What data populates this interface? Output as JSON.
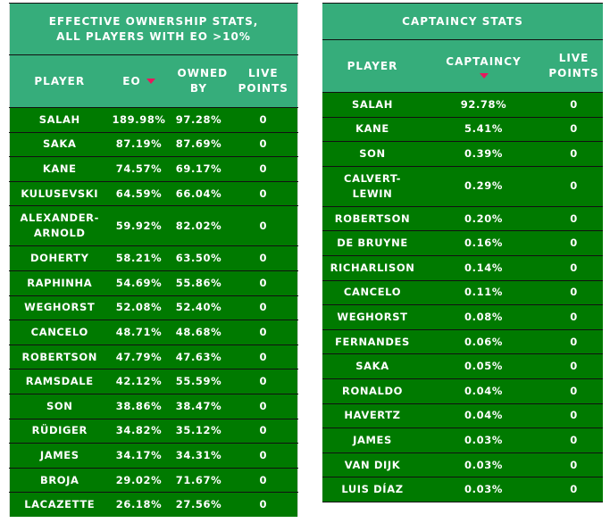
{
  "eo_table": {
    "title": "EFFECTIVE OWNERSHIP STATS, ALL PLAYERS WITH EO >10%",
    "columns": [
      "PLAYER",
      "EO",
      "OWNED BY",
      "LIVE POINTS"
    ],
    "sort_color": "#e8175d",
    "rows": [
      [
        "SALAH",
        "189.98%",
        "97.28%",
        "0"
      ],
      [
        "SAKA",
        "87.19%",
        "87.69%",
        "0"
      ],
      [
        "KANE",
        "74.57%",
        "69.17%",
        "0"
      ],
      [
        "KULUSEVSKI",
        "64.59%",
        "66.04%",
        "0"
      ],
      [
        "ALEXANDER-ARNOLD",
        "59.92%",
        "82.02%",
        "0"
      ],
      [
        "DOHERTY",
        "58.21%",
        "63.50%",
        "0"
      ],
      [
        "RAPHINHA",
        "54.69%",
        "55.86%",
        "0"
      ],
      [
        "WEGHORST",
        "52.08%",
        "52.40%",
        "0"
      ],
      [
        "CANCELO",
        "48.71%",
        "48.68%",
        "0"
      ],
      [
        "ROBERTSON",
        "47.79%",
        "47.63%",
        "0"
      ],
      [
        "RAMSDALE",
        "42.12%",
        "55.59%",
        "0"
      ],
      [
        "SON",
        "38.86%",
        "38.47%",
        "0"
      ],
      [
        "RÜDIGER",
        "34.82%",
        "35.12%",
        "0"
      ],
      [
        "JAMES",
        "34.17%",
        "34.31%",
        "0"
      ],
      [
        "BROJA",
        "29.02%",
        "71.67%",
        "0"
      ],
      [
        "LACAZETTE",
        "26.18%",
        "27.56%",
        "0"
      ]
    ]
  },
  "captaincy_table": {
    "title": "CAPTAINCY STATS",
    "columns": [
      "PLAYER",
      "CAPTAINCY",
      "LIVE POINTS"
    ],
    "rows": [
      [
        "SALAH",
        "92.78%",
        "0"
      ],
      [
        "KANE",
        "5.41%",
        "0"
      ],
      [
        "SON",
        "0.39%",
        "0"
      ],
      [
        "CALVERT-LEWIN",
        "0.29%",
        "0"
      ],
      [
        "ROBERTSON",
        "0.20%",
        "0"
      ],
      [
        "DE BRUYNE",
        "0.16%",
        "0"
      ],
      [
        "RICHARLISON",
        "0.14%",
        "0"
      ],
      [
        "CANCELO",
        "0.11%",
        "0"
      ],
      [
        "WEGHORST",
        "0.08%",
        "0"
      ],
      [
        "FERNANDES",
        "0.06%",
        "0"
      ],
      [
        "SAKA",
        "0.05%",
        "0"
      ],
      [
        "RONALDO",
        "0.04%",
        "0"
      ],
      [
        "HAVERTZ",
        "0.04%",
        "0"
      ],
      [
        "JAMES",
        "0.03%",
        "0"
      ],
      [
        "VAN DIJK",
        "0.03%",
        "0"
      ],
      [
        "LUIS DÍAZ",
        "0.03%",
        "0"
      ]
    ]
  }
}
